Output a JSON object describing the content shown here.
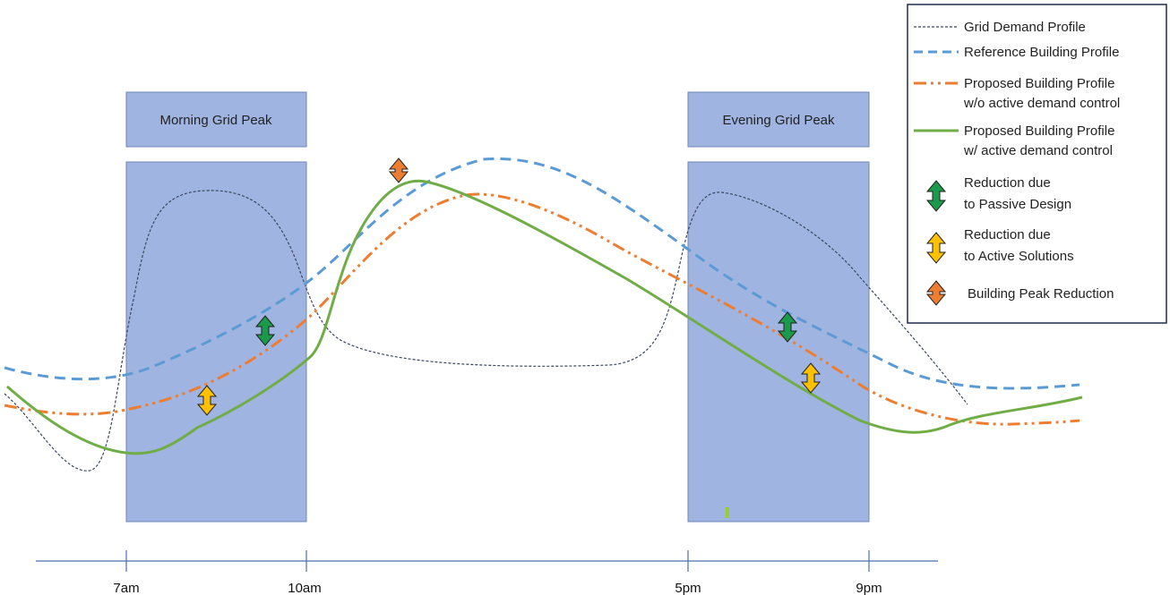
{
  "chart_data": {
    "type": "line",
    "title": "",
    "xlabel": "",
    "ylabel": "",
    "x_ticks": [
      "7am",
      "10am",
      "5pm",
      "9pm"
    ],
    "peak_windows": [
      {
        "label": "Morning Grid Peak",
        "start": "7am",
        "end": "10am"
      },
      {
        "label": "Evening Grid Peak",
        "start": "5pm",
        "end": "9pm"
      }
    ],
    "series": [
      {
        "name": "Grid Demand Profile",
        "style": "dotted",
        "color": "#3a4660"
      },
      {
        "name": "Reference Building Profile",
        "style": "dashed",
        "color": "#5b9bd5"
      },
      {
        "name": "Proposed Building Profile w/o active demand control",
        "style": "dash-dot-dot",
        "color": "#ed7d31"
      },
      {
        "name": "Proposed Building Profile w/ active demand control",
        "style": "solid",
        "color": "#70ad47"
      }
    ],
    "markers": [
      {
        "name": "Reduction due to Passive Design",
        "color": "#1a9a4a"
      },
      {
        "name": "Reduction due to Active Solutions",
        "color": "#ffc000"
      },
      {
        "name": "Building Peak Reduction",
        "color": "#ed7d31"
      }
    ],
    "legend_position": "top-right"
  },
  "peaks": {
    "morning": "Morning Grid Peak",
    "evening": "Evening Grid Peak"
  },
  "ticks": [
    "7am",
    "10am",
    "5pm",
    "9pm"
  ],
  "legend": {
    "grid": "Grid Demand Profile",
    "reference": "Reference Building Profile",
    "proposed_wo_1": "Proposed Building Profile",
    "proposed_wo_2": "w/o active demand control",
    "proposed_w_1": "Proposed Building Profile",
    "proposed_w_2": "w/ active demand control",
    "passive_1": "Reduction due",
    "passive_2": "to Passive Design",
    "active_1": "Reduction due",
    "active_2": "to Active Solutions",
    "peak_reduction": "Building Peak Reduction"
  },
  "colors": {
    "peak_fill": "#9fb4e0",
    "peak_stroke": "#6f86b8",
    "axis": "#4a6fb0",
    "grid": "#3a4660",
    "reference": "#5b9bd5",
    "proposed_wo": "#ed7d31",
    "proposed_w": "#70ad47",
    "passive": "#1a9a4a",
    "active": "#ffc000",
    "peak_reduction": "#ed7d31"
  }
}
